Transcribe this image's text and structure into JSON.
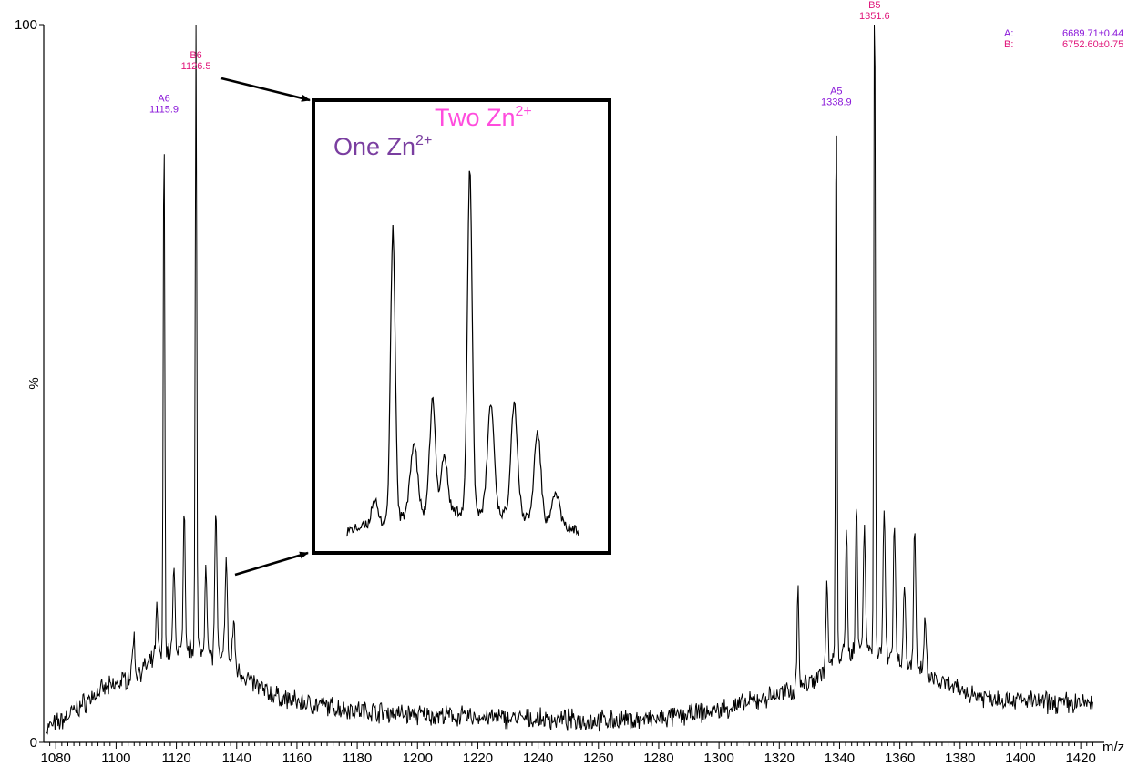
{
  "chart_data": {
    "type": "line",
    "xlabel": "m/z",
    "ylabel": "%",
    "xlim": [
      1076,
      1426
    ],
    "ylim": [
      0,
      100
    ],
    "x_ticks": [
      1080,
      1100,
      1120,
      1140,
      1160,
      1180,
      1200,
      1220,
      1240,
      1260,
      1280,
      1300,
      1320,
      1340,
      1360,
      1380,
      1400,
      1420
    ],
    "y_ticks": [
      0,
      100
    ],
    "grid": false,
    "spectrum": {
      "baseline": [
        [
          1077,
          2
        ],
        [
          1082,
          3
        ],
        [
          1088,
          5
        ],
        [
          1094,
          7
        ],
        [
          1100,
          8
        ],
        [
          1106,
          9.5
        ],
        [
          1110,
          10.5
        ],
        [
          1114,
          12
        ],
        [
          1120,
          13
        ],
        [
          1126,
          13
        ],
        [
          1132,
          12
        ],
        [
          1138,
          11
        ],
        [
          1142,
          9.5
        ],
        [
          1146,
          8
        ],
        [
          1150,
          7
        ],
        [
          1156,
          6
        ],
        [
          1162,
          5.5
        ],
        [
          1170,
          5
        ],
        [
          1180,
          4.5
        ],
        [
          1200,
          3.8
        ],
        [
          1220,
          3.5
        ],
        [
          1240,
          3.2
        ],
        [
          1260,
          3
        ],
        [
          1280,
          3.2
        ],
        [
          1300,
          4.5
        ],
        [
          1310,
          5.5
        ],
        [
          1318,
          6.5
        ],
        [
          1326,
          7.5
        ],
        [
          1332,
          9
        ],
        [
          1336,
          10.5
        ],
        [
          1340,
          12
        ],
        [
          1346,
          13
        ],
        [
          1352,
          13
        ],
        [
          1358,
          12
        ],
        [
          1364,
          10.5
        ],
        [
          1368,
          9.5
        ],
        [
          1372,
          8.5
        ],
        [
          1378,
          7.5
        ],
        [
          1386,
          6.5
        ],
        [
          1396,
          6
        ],
        [
          1410,
          5.5
        ],
        [
          1424,
          5.5
        ]
      ],
      "peaks": [
        [
          1105.8,
          5.5,
          0.35
        ],
        [
          1113.5,
          6.5,
          0.35
        ],
        [
          1115.9,
          75,
          0.25
        ],
        [
          1119.2,
          11,
          0.35
        ],
        [
          1122.6,
          19,
          0.3
        ],
        [
          1126.5,
          89,
          0.25
        ],
        [
          1129.8,
          13,
          0.35
        ],
        [
          1133.1,
          21,
          0.35
        ],
        [
          1136.5,
          14,
          0.4
        ],
        [
          1139.0,
          6,
          0.4
        ],
        [
          1326.2,
          15,
          0.3
        ],
        [
          1335.8,
          12,
          0.3
        ],
        [
          1338.9,
          78,
          0.25
        ],
        [
          1342.3,
          18,
          0.3
        ],
        [
          1345.6,
          21,
          0.3
        ],
        [
          1348.2,
          18,
          0.35
        ],
        [
          1351.6,
          96,
          0.25
        ],
        [
          1354.8,
          20,
          0.35
        ],
        [
          1358.2,
          19,
          0.35
        ],
        [
          1361.5,
          11,
          0.35
        ],
        [
          1364.9,
          19,
          0.35
        ],
        [
          1368.3,
          7,
          0.4
        ]
      ]
    },
    "annotations": [
      {
        "name": "A6",
        "mz": "1115.9",
        "x": 1115.9,
        "y": 87,
        "series": "A"
      },
      {
        "name": "B6",
        "mz": "1126.5",
        "x": 1126.5,
        "y": 93,
        "series": "B"
      },
      {
        "name": "A5",
        "mz": "1338.9",
        "x": 1338.9,
        "y": 88,
        "series": "A"
      },
      {
        "name": "B5",
        "mz": "1351.6",
        "x": 1351.6,
        "y": 100,
        "series": "B"
      }
    ],
    "masses": [
      {
        "label": "A:",
        "value": "6689.71±0.44"
      },
      {
        "label": "B:",
        "value": "6752.60±0.75"
      }
    ],
    "inset": {
      "one_label": "One  Zn",
      "one_sup": "2+",
      "two_label": "Two Zn",
      "two_sup": "2+"
    }
  },
  "colors": {
    "series_a": "#8a17d9",
    "series_b": "#e0157a",
    "inset_one": "#7a3ea0",
    "inset_two": "#ff4cdd",
    "line": "#000000"
  }
}
